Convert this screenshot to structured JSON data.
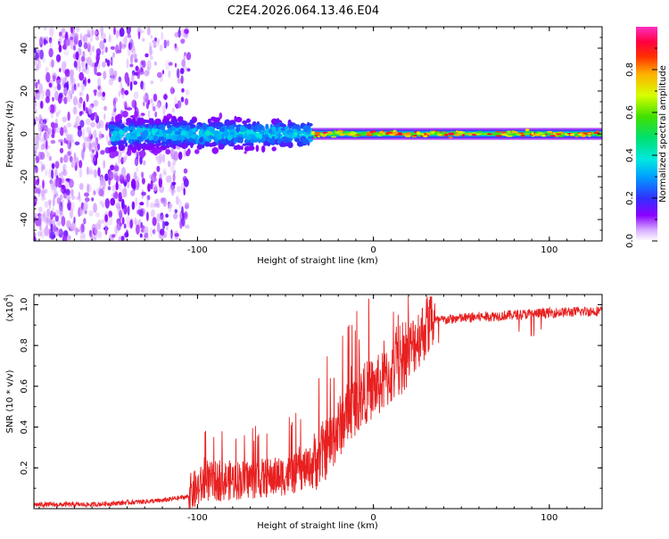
{
  "title": "C2E4.2026.064.13.46.E04",
  "chart_data": [
    {
      "type": "heatmap",
      "name": "spectrogram",
      "xlabel": "Height of straight line (km)",
      "ylabel": "Frequency (Hz)",
      "xlim": [
        -193,
        130
      ],
      "ylim": [
        -50,
        50
      ],
      "xticks": [
        -100,
        0,
        100
      ],
      "yticks": [
        -40,
        -20,
        0,
        20,
        40
      ],
      "colorbar": {
        "label": "Normalized spectral amplitude",
        "range": [
          0,
          1
        ],
        "ticks": [
          "0.0",
          "0.2",
          "0.4",
          "0.6",
          "0.8"
        ],
        "tick_values": [
          0.0,
          0.2,
          0.4,
          0.6,
          0.8
        ]
      },
      "colors": [
        "#ffffff",
        "#d9b0ff",
        "#8a00ff",
        "#3030ff",
        "#00b4ff",
        "#00e8c8",
        "#00e000",
        "#d8ff00",
        "#ff9000",
        "#ff0000",
        "#ff20a0"
      ],
      "description_notes": {
        "noise_region_x": [
          -193,
          -105
        ],
        "broad_signal_x": [
          -150,
          -35
        ],
        "narrow_signal_x": [
          -35,
          130
        ],
        "center_frequency": 0
      }
    },
    {
      "type": "line",
      "name": "snr",
      "xlabel": "Height of straight line (km)",
      "ylabel": "SNR (10 * v/v)",
      "ylabel_scale": "(x10^4)",
      "xlim": [
        -193,
        130
      ],
      "ylim": [
        0,
        1.05
      ],
      "xticks": [
        -100,
        0,
        100
      ],
      "yticks": [
        0.2,
        0.4,
        0.6,
        0.8,
        1.0
      ],
      "color": "#e82020",
      "trend_points": [
        [
          -193,
          0.02
        ],
        [
          -160,
          0.02
        ],
        [
          -140,
          0.03
        ],
        [
          -120,
          0.04
        ],
        [
          -105,
          0.06
        ],
        [
          -95,
          0.12
        ],
        [
          -80,
          0.13
        ],
        [
          -60,
          0.14
        ],
        [
          -45,
          0.16
        ],
        [
          -35,
          0.2
        ],
        [
          -25,
          0.3
        ],
        [
          -15,
          0.45
        ],
        [
          -5,
          0.55
        ],
        [
          5,
          0.6
        ],
        [
          15,
          0.68
        ],
        [
          25,
          0.82
        ],
        [
          35,
          0.92
        ],
        [
          45,
          0.93
        ],
        [
          60,
          0.94
        ],
        [
          80,
          0.95
        ],
        [
          100,
          0.96
        ],
        [
          130,
          0.97
        ]
      ]
    }
  ],
  "colorbar_ticks": [
    "0.0",
    "0.2",
    "0.4",
    "0.6",
    "0.8"
  ],
  "snr_yticks": [
    "0.2",
    "0.4",
    "0.6",
    "0.8",
    "1.0"
  ],
  "freq_yticks": [
    "-40",
    "-20",
    "0",
    "20",
    "40"
  ],
  "xticks": [
    "-100",
    "0",
    "100"
  ],
  "snr_scale_label": "(x10",
  "snr_scale_exp": "4",
  "snr_scale_close": ")"
}
